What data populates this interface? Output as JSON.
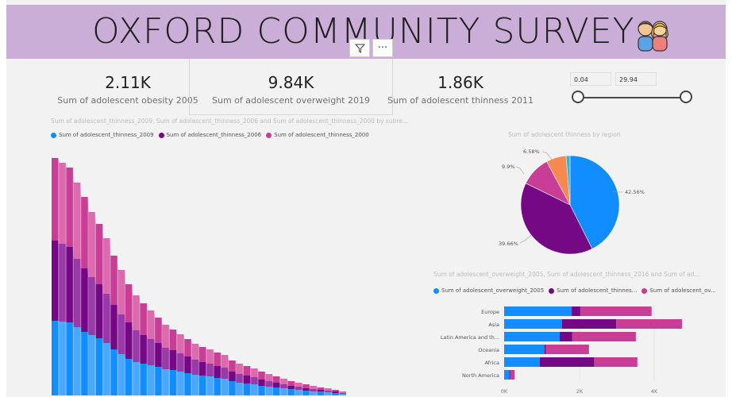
{
  "header": {
    "title": "OXFORD COMMUNITY SURVEY",
    "icon": "two-children-icon"
  },
  "visual_header": {
    "filter_icon": "filter-icon",
    "more_label": "···"
  },
  "cards": [
    {
      "value": "2.11K",
      "label": "Sum of adolescent obesity 2005"
    },
    {
      "value": "9.84K",
      "label": "Sum of adolescent overweight 2019"
    },
    {
      "value": "1.86K",
      "label": "Sum of adolescent thinness 2011"
    }
  ],
  "slicer": {
    "min": "0.04",
    "max": "29.94"
  },
  "colors": {
    "blue": "#118dff",
    "purple": "#750985",
    "magenta": "#c83d95",
    "orange": "#f5894f",
    "cyan": "#2fb5d6"
  },
  "ribbon": {
    "title": "Sum of adolescent_thinness_2009, Sum of adolescent_thinness_2006 and Sum of adolescent_thinness_2000 by subre...",
    "legend": [
      "Sum of adolescent_thinness_2009",
      "Sum of adolescent_thinness_2006",
      "Sum of adolescent_thinness_2000"
    ]
  },
  "pie": {
    "title": "Sum of adolescent thinness by region",
    "labels": [
      "42.56%",
      "39.66%",
      "9.9%",
      "6.58%"
    ]
  },
  "bars": {
    "title": "Sum of adolescent_overweight_2005, Sum of adolescent_thinness_2016 and Sum of ad...",
    "legend": [
      "Sum of adolescent_overweight_2005",
      "Sum of adolescent_thinnes...",
      "Sum of adolescent_ov..."
    ],
    "x_ticks": [
      "0K",
      "2K",
      "4K"
    ]
  },
  "chart_data": [
    {
      "type": "area",
      "series": [
        {
          "name": "Sum of adolescent_thinness_2009",
          "values": [
            94,
            93,
            92,
            86,
            80,
            76,
            72,
            66,
            58,
            52,
            46,
            42,
            40,
            38,
            36,
            33,
            32,
            30,
            28,
            26,
            25,
            24,
            22,
            21,
            18,
            16,
            15,
            14,
            12,
            11,
            10,
            9,
            8,
            7,
            6,
            5,
            5,
            4,
            3,
            2
          ]
        },
        {
          "name": "Sum of adolescent_thinness_2006",
          "values": [
            101,
            98,
            95,
            86,
            80,
            73,
            68,
            62,
            56,
            50,
            46,
            40,
            36,
            33,
            30,
            27,
            25,
            23,
            21,
            19,
            17,
            16,
            15,
            14,
            12,
            11,
            10,
            9,
            8,
            7,
            6,
            5,
            4,
            4,
            3,
            3,
            2,
            2,
            2,
            1
          ]
        },
        {
          "name": "Sum of adolescent_thinness_2000",
          "values": [
            104,
            102,
            100,
            96,
            90,
            82,
            76,
            70,
            62,
            56,
            48,
            44,
            40,
            36,
            32,
            29,
            26,
            24,
            22,
            20,
            19,
            18,
            17,
            16,
            14,
            13,
            12,
            11,
            10,
            9,
            8,
            7,
            6,
            5,
            5,
            4,
            3,
            3,
            2,
            2
          ]
        }
      ]
    },
    {
      "type": "pie",
      "title": "Sum of adolescent thinness by region",
      "values": [
        42.56,
        39.66,
        9.9,
        6.58,
        1.3
      ],
      "colors": [
        "#118dff",
        "#750985",
        "#c83d95",
        "#f5894f",
        "#2fb5d6"
      ]
    },
    {
      "type": "bar",
      "categories": [
        "Europe",
        "Asia",
        "Latin America and th...",
        "Oceania",
        "Africa",
        "North America"
      ],
      "series": [
        {
          "name": "Sum of adolescent_overweight_2005",
          "values": [
            1800,
            1540,
            1480,
            1080,
            950,
            140
          ]
        },
        {
          "name": "Sum of adolescent_thinnes...",
          "values": [
            230,
            1450,
            330,
            30,
            1450,
            20
          ]
        },
        {
          "name": "Sum of adolescent_ov...",
          "values": [
            1900,
            1750,
            1700,
            1150,
            1150,
            120
          ]
        }
      ],
      "x_ticks": [
        "0K",
        "2K",
        "4K"
      ],
      "xlim": [
        0,
        4000
      ]
    }
  ]
}
